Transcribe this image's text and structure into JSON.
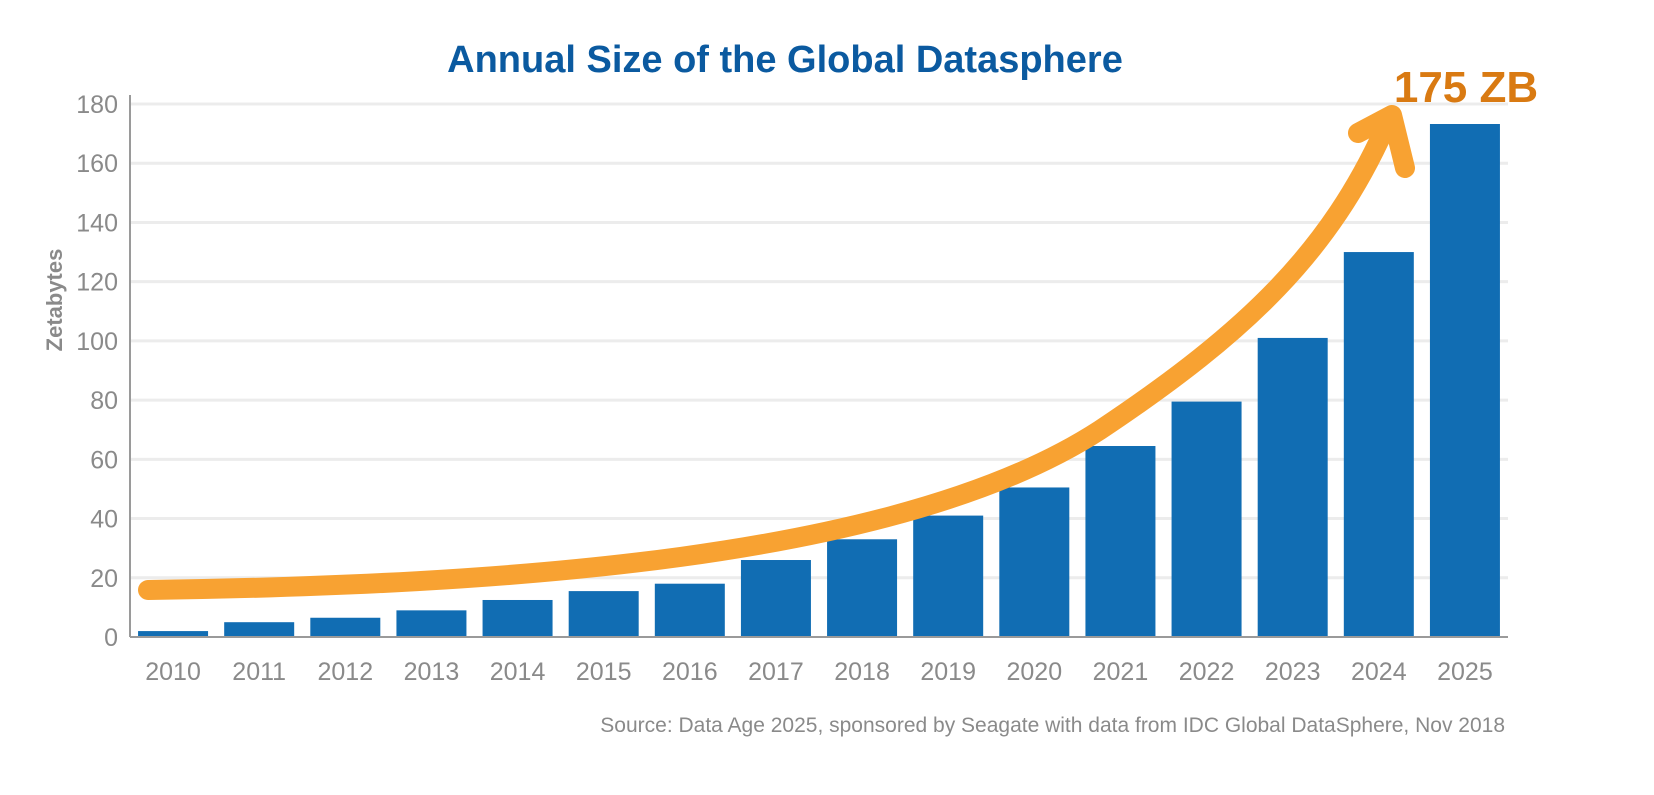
{
  "chart_data": {
    "type": "bar",
    "title": "Annual Size of the Global Datasphere",
    "ylabel": "Zetabytes",
    "xlabel": "",
    "ylim": [
      0,
      180
    ],
    "yticks": [
      0,
      20,
      40,
      60,
      80,
      100,
      120,
      140,
      160,
      180
    ],
    "grid": true,
    "categories": [
      "2010",
      "2011",
      "2012",
      "2013",
      "2014",
      "2015",
      "2016",
      "2017",
      "2018",
      "2019",
      "2020",
      "2021",
      "2022",
      "2023",
      "2024",
      "2025"
    ],
    "values": [
      2,
      5,
      6.5,
      9,
      12.5,
      15.5,
      18,
      26,
      33,
      41,
      50.5,
      64.5,
      79.5,
      101,
      130,
      175
    ],
    "annotation": "175 ZB",
    "source": "Source: Data Age 2025, sponsored by Seagate with data from IDC Global DataSphere, Nov 2018",
    "colors": {
      "bar": "#116db3",
      "title": "#0b5aa0",
      "arrow": "#f8a232",
      "annotation": "#d97a12",
      "axis_text": "#8a8a8a",
      "grid": "#ececec"
    }
  }
}
